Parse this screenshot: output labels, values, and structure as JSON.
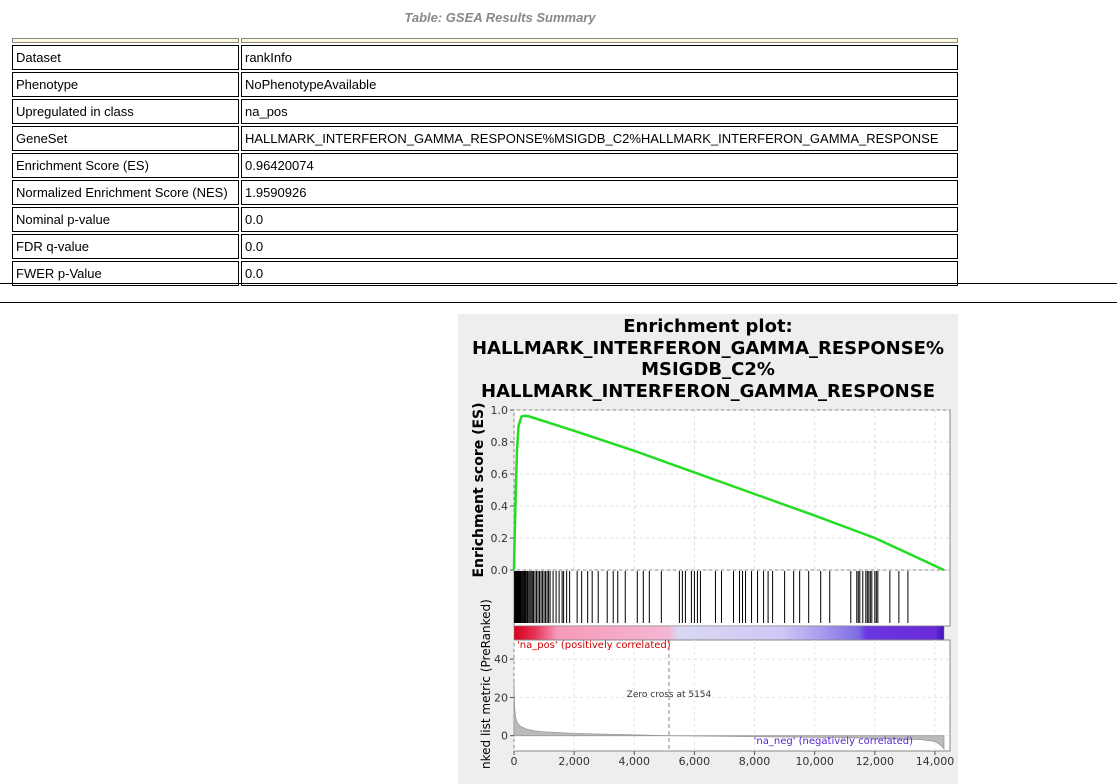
{
  "caption": "Table: GSEA Results Summary",
  "table": {
    "rows": [
      {
        "key": "Dataset",
        "value": "rankInfo"
      },
      {
        "key": "Phenotype",
        "value": "NoPhenotypeAvailable"
      },
      {
        "key": "Upregulated in class",
        "value": "na_pos"
      },
      {
        "key": "GeneSet",
        "value": "HALLMARK_INTERFERON_GAMMA_RESPONSE%MSIGDB_C2%HALLMARK_INTERFERON_GAMMA_RESPONSE"
      },
      {
        "key": "Enrichment Score (ES)",
        "value": "0.96420074"
      },
      {
        "key": "Normalized Enrichment Score (NES)",
        "value": "1.9590926"
      },
      {
        "key": "Nominal p-value",
        "value": "0.0"
      },
      {
        "key": "FDR q-value",
        "value": "0.0"
      },
      {
        "key": "FWER p-Value",
        "value": "0.0"
      }
    ]
  },
  "chart_data": {
    "type": "line",
    "title_lines": [
      "Enrichment plot:",
      "HALLMARK_INTERFERON_GAMMA_RESPONSE%",
      "MSIGDB_C2%",
      "HALLMARK_INTERFERON_GAMMA_RESPONSE"
    ],
    "ylabel": "Enrichment score (ES)",
    "ylabel_bottom": "nked list metric (PreRanked)",
    "xlim": [
      0,
      14500
    ],
    "ylim": [
      0,
      1.0
    ],
    "x_ticks": [
      0,
      2000,
      4000,
      6000,
      8000,
      10000,
      12000,
      14000
    ],
    "x_tick_labels": [
      "0",
      "2,000",
      "4,000",
      "6,000",
      "8,000",
      "10,000",
      "12,000",
      "14,000"
    ],
    "y_ticks": [
      0,
      0.2,
      0.4,
      0.6,
      0.8,
      1.0
    ],
    "y_tick_labels": [
      "0.0",
      "0.2",
      "0.4",
      "0.6",
      "0.8",
      "1.0"
    ],
    "es_series": {
      "color": "#22dd22",
      "x": [
        0,
        20,
        60,
        100,
        150,
        250,
        350,
        500,
        1000,
        2000,
        4000,
        6000,
        8000,
        10000,
        12000,
        14300
      ],
      "y": [
        0,
        0.2,
        0.5,
        0.75,
        0.9,
        0.96,
        0.964,
        0.96,
        0.93,
        0.87,
        0.745,
        0.61,
        0.475,
        0.34,
        0.2,
        0.0
      ]
    },
    "hit_positions": [
      20,
      40,
      60,
      80,
      100,
      120,
      140,
      160,
      180,
      200,
      230,
      260,
      290,
      320,
      350,
      380,
      410,
      450,
      490,
      530,
      570,
      610,
      650,
      700,
      750,
      800,
      850,
      900,
      950,
      1000,
      1050,
      1100,
      1150,
      1200,
      1300,
      1400,
      1500,
      1600,
      1650,
      1750,
      1850,
      2100,
      2250,
      2450,
      2600,
      2800,
      3100,
      3300,
      3450,
      3700,
      4100,
      4300,
      4500,
      4900,
      5500,
      5600,
      5700,
      5900,
      6000,
      6100,
      6200,
      6700,
      6900,
      7300,
      7500,
      7600,
      7700,
      7900,
      8100,
      8300,
      8450,
      8600,
      9000,
      9300,
      9500,
      9800,
      10200,
      10500,
      11200,
      11400,
      11450,
      11500,
      11600,
      11700,
      11750,
      11800,
      11850,
      11900,
      12000,
      12050,
      12100,
      12500,
      12800,
      13100
    ],
    "ranked_list": {
      "yticks": [
        0,
        20,
        40
      ],
      "ytick_labels": [
        "0",
        "20",
        "40"
      ],
      "ylim": [
        -8,
        50
      ],
      "x": [
        0,
        20,
        50,
        100,
        200,
        400,
        700,
        1000,
        1500,
        2000,
        3000,
        5154,
        8000,
        11000,
        13500,
        14000,
        14200,
        14300
      ],
      "y": [
        28,
        15,
        10,
        7,
        5,
        3.5,
        2.5,
        2,
        1.6,
        1.2,
        0.8,
        0,
        -0.5,
        -1,
        -2,
        -3,
        -5,
        -7
      ]
    },
    "zero_cross_label": "Zero cross at 5154",
    "zero_cross_x": 5154,
    "pos_label": "'na_pos' (positively correlated)",
    "neg_label": "'na_neg' (negatively correlated)",
    "pos_color": "#cc0000",
    "neg_color": "#5522cc"
  }
}
